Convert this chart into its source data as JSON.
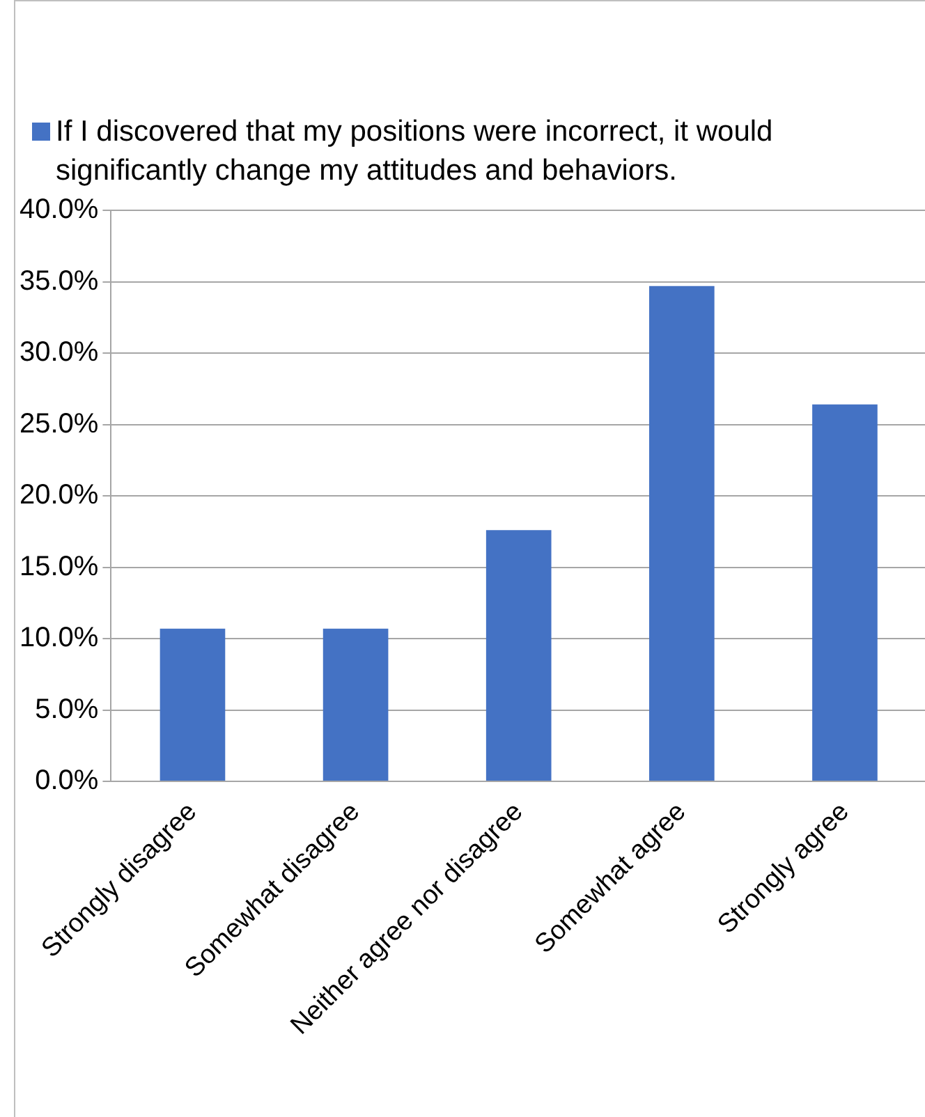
{
  "chart_data": {
    "type": "bar",
    "categories": [
      "Strongly disagree",
      "Somewhat disagree",
      "Neither agree nor disagree",
      "Somewhat agree",
      "Strongly agree"
    ],
    "series": [
      {
        "name": "If I discovered that my positions were incorrect, it would significantly change my attitudes and behaviors.",
        "color": "#4472c4",
        "values": [
          10.7,
          10.7,
          17.6,
          34.7,
          26.4
        ]
      }
    ],
    "ylim": [
      0,
      40
    ],
    "yticks": [
      {
        "value": 0,
        "label": "0.0%"
      },
      {
        "value": 5,
        "label": "5.0%"
      },
      {
        "value": 10,
        "label": "10.0%"
      },
      {
        "value": 15,
        "label": "15.0%"
      },
      {
        "value": 20,
        "label": "20.0%"
      },
      {
        "value": 25,
        "label": "25.0%"
      },
      {
        "value": 30,
        "label": "30.0%"
      },
      {
        "value": 35,
        "label": "35.0%"
      },
      {
        "value": 40,
        "label": "40.0%"
      }
    ],
    "grid": "y",
    "legend": "top"
  }
}
